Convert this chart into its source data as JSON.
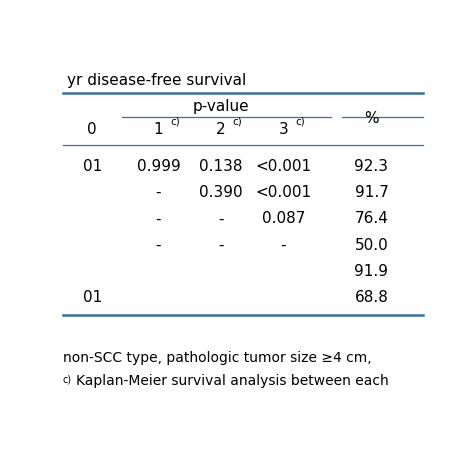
{
  "title": "yr disease-free survival",
  "footnote1": "non-SCC type, pathologic tumor size ≥4 cm,",
  "footnote2": "c)Kaplan-Meier survival analysis between each",
  "data_rows": [
    [
      "01",
      "0.999",
      "0.138",
      "<0.001",
      "92.3"
    ],
    [
      "",
      "-",
      "0.390",
      "<0.001",
      "91.7"
    ],
    [
      "",
      "-",
      "-",
      "0.087",
      "76.4"
    ],
    [
      "",
      "-",
      "-",
      "-",
      "50.0"
    ],
    [
      "",
      "",
      "",
      "",
      "91.9"
    ],
    [
      "01",
      "",
      "",
      "",
      "68.8"
    ]
  ],
  "background_color": "#ffffff",
  "line_color": "#3a6ea5",
  "text_color": "#000000",
  "font_size": 11
}
